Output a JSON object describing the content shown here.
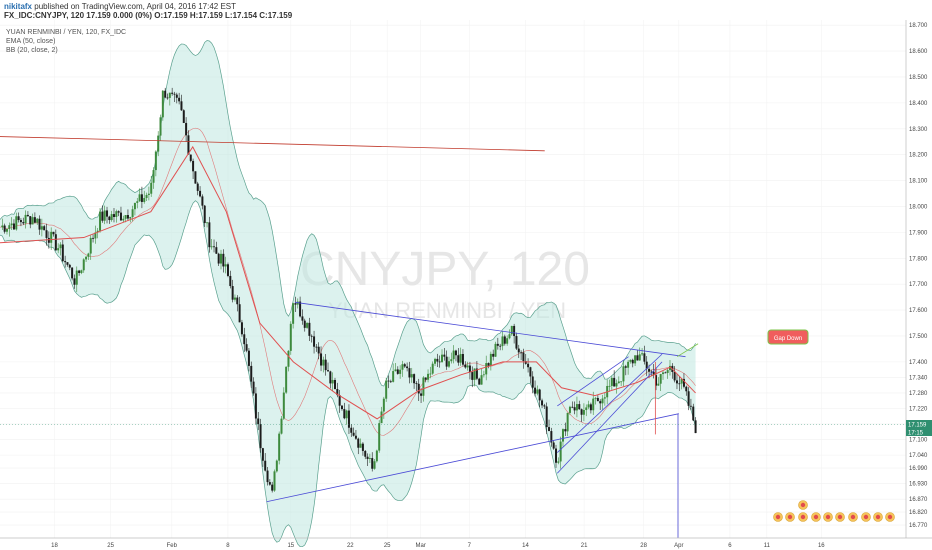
{
  "header": {
    "author": "nikitafx",
    "published": "published on TradingView.com, April 04, 2016 17:42 EST",
    "ohlc": "FX_IDC:CNYJPY, 120  17.159 0.000 (0%) O:17.159 H:17.159 L:17.154 C:17.159"
  },
  "legend": {
    "line1": "YUAN RENMINBI / YEN, 120, FX_IDC",
    "line2": "EMA (50, close)",
    "line3": "BB (20, close, 2)"
  },
  "watermark": {
    "ticker": "CNYJPY, 120",
    "name": "YUAN RENMINBI / YEN"
  },
  "annotation": {
    "label": "Gap Down"
  },
  "price_labels": {
    "last": "17.159",
    "countdown": "17:15"
  },
  "colors": {
    "up": "#3d8a3d",
    "down": "#1c1c1c",
    "ema": "#e05050",
    "bb_fill": "#bfe8e0",
    "bb_line": "#5aa08e",
    "trend": "#4b4bd6",
    "gap_box": "#f05d5d",
    "gap_border": "#7cc44a"
  },
  "chart_data": {
    "type": "candlestick",
    "title": "YUAN RENMINBI / YEN, 120, FX_IDC",
    "ylim": [
      16.72,
      18.72
    ],
    "y_ticks": [
      18.7,
      18.6,
      18.5,
      18.4,
      18.3,
      18.2,
      18.1,
      18.0,
      17.9,
      17.8,
      17.7,
      17.6,
      17.5,
      17.4,
      17.34,
      17.28,
      17.22,
      17.16,
      17.1,
      17.04,
      16.99,
      16.93,
      16.87,
      16.82,
      16.77
    ],
    "x_ticks": [
      "18",
      "25",
      "Feb",
      "8",
      "15",
      "22",
      "25",
      "Mar",
      "7",
      "14",
      "21",
      "28",
      "Apr",
      "6",
      "11",
      "16"
    ],
    "series_points": {
      "close": [
        [
          0.0,
          17.92
        ],
        [
          0.04,
          17.96
        ],
        [
          0.07,
          17.84
        ],
        [
          0.09,
          17.71
        ],
        [
          0.12,
          17.96
        ],
        [
          0.15,
          17.97
        ],
        [
          0.18,
          18.06
        ],
        [
          0.195,
          18.45
        ],
        [
          0.215,
          18.38
        ],
        [
          0.23,
          18.15
        ],
        [
          0.25,
          17.87
        ],
        [
          0.27,
          17.75
        ],
        [
          0.29,
          17.52
        ],
        [
          0.31,
          17.1
        ],
        [
          0.325,
          16.88
        ],
        [
          0.335,
          17.18
        ],
        [
          0.35,
          17.65
        ],
        [
          0.37,
          17.52
        ],
        [
          0.4,
          17.28
        ],
        [
          0.43,
          17.08
        ],
        [
          0.445,
          16.98
        ],
        [
          0.46,
          17.3
        ],
        [
          0.48,
          17.38
        ],
        [
          0.5,
          17.28
        ],
        [
          0.52,
          17.4
        ],
        [
          0.55,
          17.42
        ],
        [
          0.57,
          17.33
        ],
        [
          0.59,
          17.44
        ],
        [
          0.61,
          17.52
        ],
        [
          0.63,
          17.38
        ],
        [
          0.65,
          17.2
        ],
        [
          0.665,
          17.02
        ],
        [
          0.68,
          17.24
        ],
        [
          0.7,
          17.2
        ],
        [
          0.72,
          17.28
        ],
        [
          0.74,
          17.34
        ],
        [
          0.76,
          17.43
        ],
        [
          0.775,
          17.37
        ],
        [
          0.785,
          17.32
        ],
        [
          0.8,
          17.38
        ],
        [
          0.815,
          17.3
        ],
        [
          0.83,
          17.15
        ]
      ],
      "ema50": [
        [
          0.0,
          17.86
        ],
        [
          0.1,
          17.88
        ],
        [
          0.18,
          17.98
        ],
        [
          0.23,
          18.23
        ],
        [
          0.27,
          17.98
        ],
        [
          0.31,
          17.55
        ],
        [
          0.35,
          17.4
        ],
        [
          0.4,
          17.28
        ],
        [
          0.45,
          17.18
        ],
        [
          0.5,
          17.29
        ],
        [
          0.55,
          17.35
        ],
        [
          0.6,
          17.4
        ],
        [
          0.64,
          17.4
        ],
        [
          0.67,
          17.3
        ],
        [
          0.71,
          17.27
        ],
        [
          0.76,
          17.32
        ],
        [
          0.8,
          17.38
        ],
        [
          0.83,
          17.28
        ]
      ]
    },
    "annotations": [
      "Gap Down"
    ]
  }
}
